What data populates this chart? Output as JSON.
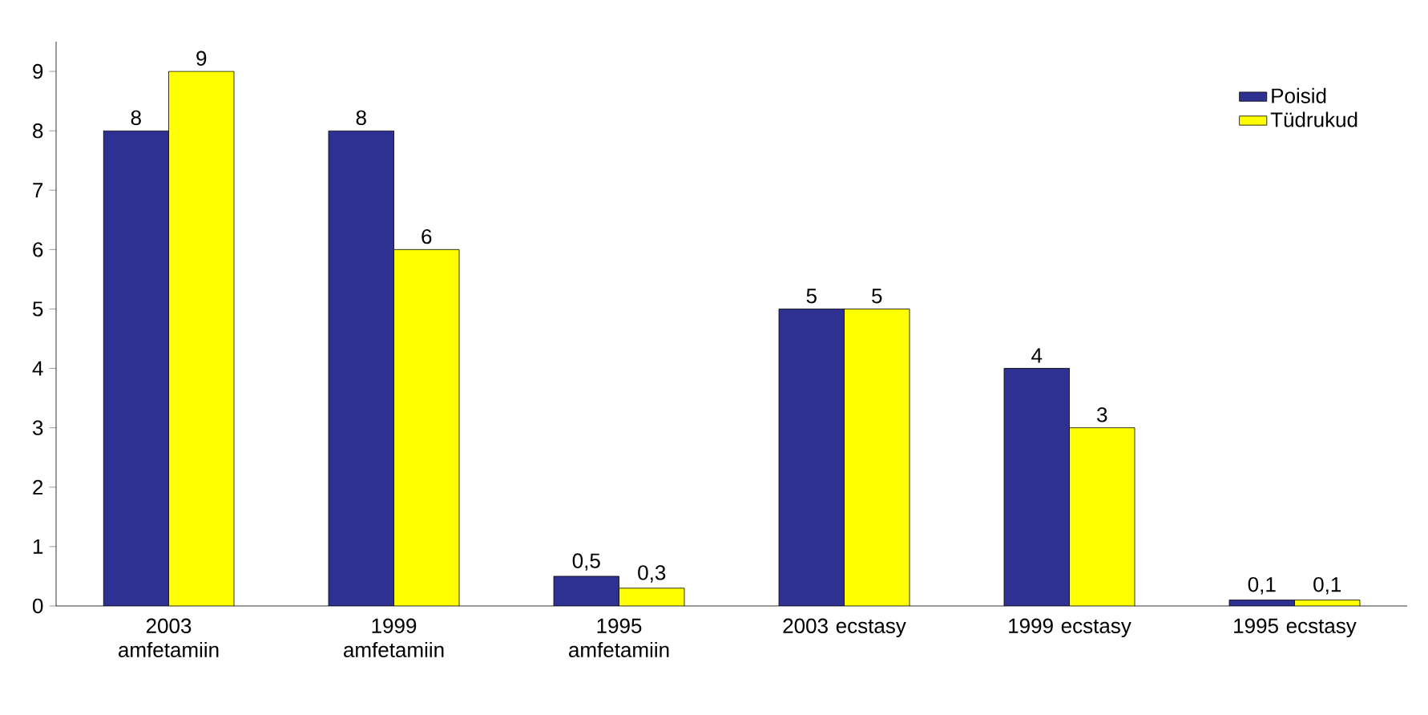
{
  "chart_data": {
    "type": "bar",
    "categories": [
      "2003 amfetamiin",
      "1999 amfetamiin",
      "1995 amfetamiin",
      "2003 ecstasy",
      "1999 ecstasy",
      "1995 ecstasy"
    ],
    "series": [
      {
        "name": "Poisid",
        "color": "#2e3192",
        "values": [
          8,
          8,
          0.5,
          5,
          4,
          0.1
        ],
        "value_labels": [
          "8",
          "8",
          "0,5",
          "5",
          "4",
          "0,1"
        ]
      },
      {
        "name": "Tüdrukud",
        "color": "#ffff00",
        "values": [
          9,
          6,
          0.3,
          5,
          3,
          0.1
        ],
        "value_labels": [
          "9",
          "6",
          "0,3",
          "5",
          "3",
          "0,1"
        ]
      }
    ],
    "ylim": [
      0,
      9.5
    ],
    "yticks": [
      0,
      1,
      2,
      3,
      4,
      5,
      6,
      7,
      8,
      9
    ],
    "grid": false,
    "legend": "top right"
  }
}
